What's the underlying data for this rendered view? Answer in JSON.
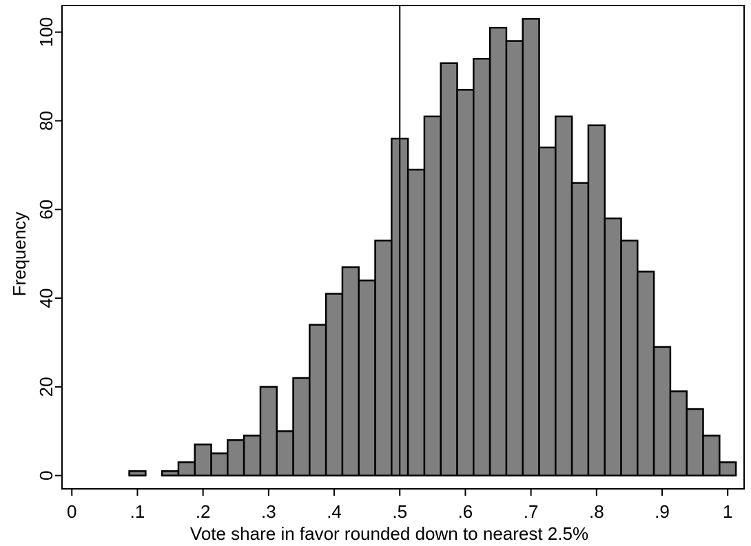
{
  "chart_data": {
    "type": "bar",
    "title": "",
    "xlabel": "Vote share in favor rounded down to nearest 2.5%",
    "ylabel": "Frequency",
    "bin_width": 0.025,
    "bins": [
      {
        "x": 0.1,
        "value": 1
      },
      {
        "x": 0.15,
        "value": 1
      },
      {
        "x": 0.175,
        "value": 3
      },
      {
        "x": 0.2,
        "value": 7
      },
      {
        "x": 0.225,
        "value": 5
      },
      {
        "x": 0.25,
        "value": 8
      },
      {
        "x": 0.275,
        "value": 9
      },
      {
        "x": 0.3,
        "value": 20
      },
      {
        "x": 0.325,
        "value": 10
      },
      {
        "x": 0.35,
        "value": 22
      },
      {
        "x": 0.375,
        "value": 34
      },
      {
        "x": 0.4,
        "value": 41
      },
      {
        "x": 0.425,
        "value": 47
      },
      {
        "x": 0.45,
        "value": 44
      },
      {
        "x": 0.475,
        "value": 53
      },
      {
        "x": 0.5,
        "value": 76
      },
      {
        "x": 0.525,
        "value": 69
      },
      {
        "x": 0.55,
        "value": 81
      },
      {
        "x": 0.575,
        "value": 93
      },
      {
        "x": 0.6,
        "value": 87
      },
      {
        "x": 0.625,
        "value": 94
      },
      {
        "x": 0.65,
        "value": 101
      },
      {
        "x": 0.675,
        "value": 98
      },
      {
        "x": 0.7,
        "value": 103
      },
      {
        "x": 0.725,
        "value": 74
      },
      {
        "x": 0.75,
        "value": 81
      },
      {
        "x": 0.775,
        "value": 66
      },
      {
        "x": 0.8,
        "value": 79
      },
      {
        "x": 0.825,
        "value": 58
      },
      {
        "x": 0.85,
        "value": 53
      },
      {
        "x": 0.875,
        "value": 46
      },
      {
        "x": 0.9,
        "value": 29
      },
      {
        "x": 0.925,
        "value": 19
      },
      {
        "x": 0.95,
        "value": 15
      },
      {
        "x": 0.975,
        "value": 9
      },
      {
        "x": 1.0,
        "value": 3
      }
    ],
    "xlim": [
      -0.015,
      1.025
    ],
    "ylim": [
      -3,
      106
    ],
    "xticks": [
      0,
      0.1,
      0.2,
      0.3,
      0.4,
      0.5,
      0.6,
      0.7,
      0.8,
      0.9,
      1
    ],
    "xtick_labels": [
      "0",
      ".1",
      ".2",
      ".3",
      ".4",
      ".5",
      ".6",
      ".7",
      ".8",
      ".9",
      "1"
    ],
    "yticks": [
      0,
      20,
      40,
      60,
      80,
      100
    ],
    "ytick_labels": [
      "0",
      "20",
      "40",
      "60",
      "80",
      "100"
    ],
    "reference_line_x": 0.5,
    "bar_color": "#808080",
    "bar_edge_color": "#000000",
    "grid": false,
    "legend": "none"
  }
}
